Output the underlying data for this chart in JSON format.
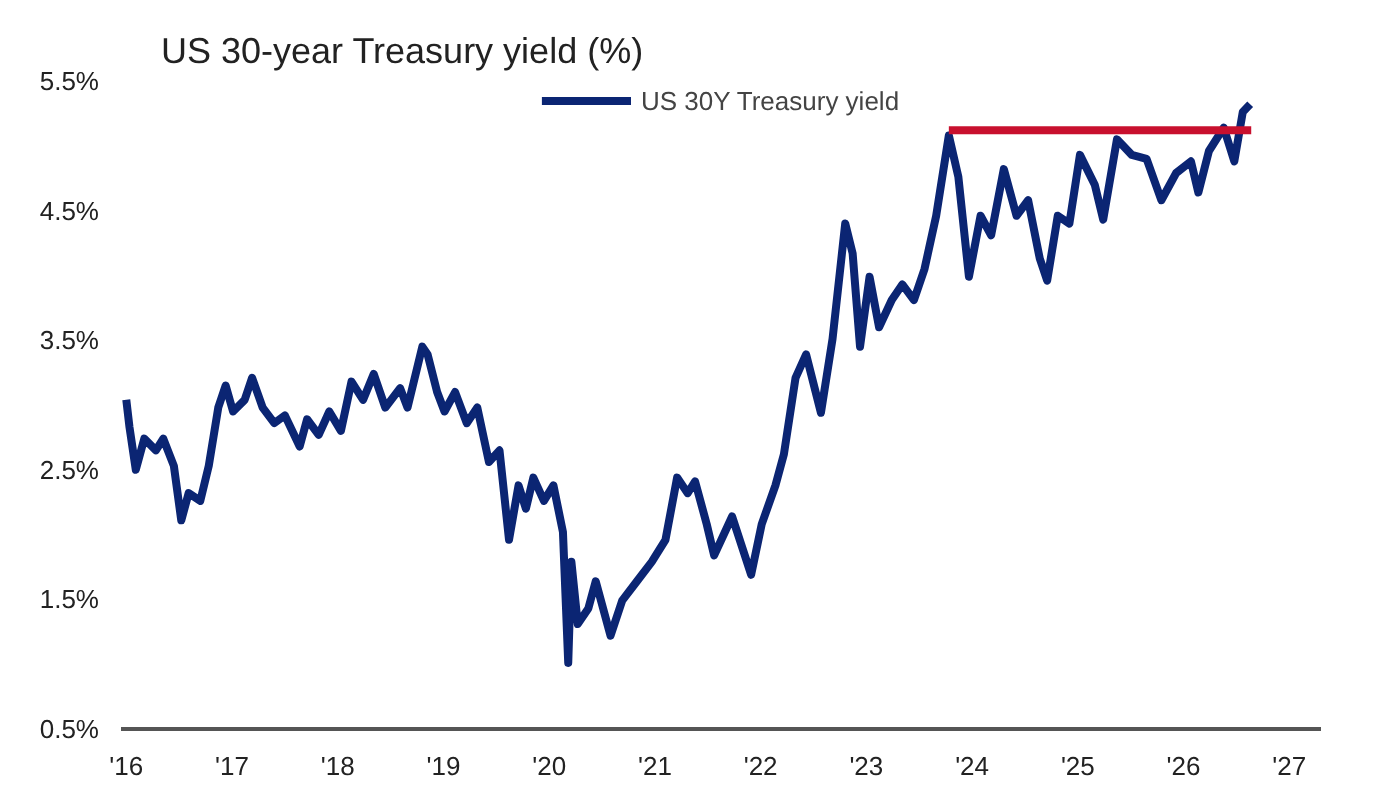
{
  "chart_data": {
    "type": "line",
    "title": "US 30-year Treasury yield (%)",
    "series": [
      {
        "name": "US 30Y Treasury yield",
        "color": "#0b2573",
        "x": [
          2016.0,
          2016.03,
          2016.09,
          2016.17,
          2016.28,
          2016.35,
          2016.45,
          2016.52,
          2016.59,
          2016.7,
          2016.78,
          2016.87,
          2016.94,
          2017.01,
          2017.12,
          2017.19,
          2017.29,
          2017.4,
          2017.5,
          2017.64,
          2017.71,
          2017.82,
          2017.92,
          2018.03,
          2018.13,
          2018.24,
          2018.34,
          2018.45,
          2018.59,
          2018.66,
          2018.8,
          2018.85,
          2018.94,
          2019.01,
          2019.11,
          2019.22,
          2019.32,
          2019.43,
          2019.53,
          2019.62,
          2019.71,
          2019.78,
          2019.85,
          2019.95,
          2020.04,
          2020.13,
          2020.18,
          2020.21,
          2020.27,
          2020.37,
          2020.44,
          2020.58,
          2020.69,
          2020.83,
          2020.97,
          2021.1,
          2021.21,
          2021.31,
          2021.38,
          2021.49,
          2021.56,
          2021.73,
          2021.91,
          2022.01,
          2022.14,
          2022.22,
          2022.33,
          2022.43,
          2022.57,
          2022.68,
          2022.8,
          2022.87,
          2022.94,
          2023.03,
          2023.12,
          2023.24,
          2023.34,
          2023.45,
          2023.55,
          2023.66,
          2023.78,
          2023.87,
          2023.97,
          2024.08,
          2024.18,
          2024.3,
          2024.42,
          2024.53,
          2024.64,
          2024.71,
          2024.81,
          2024.92,
          2025.02,
          2025.16,
          2025.24,
          2025.37,
          2025.51,
          2025.65,
          2025.79,
          2025.93,
          2026.07,
          2026.14,
          2026.24,
          2026.38,
          2026.48,
          2026.56,
          2026.63
        ],
        "values": [
          3.04,
          2.83,
          2.5,
          2.74,
          2.65,
          2.74,
          2.53,
          2.11,
          2.32,
          2.26,
          2.53,
          2.98,
          3.15,
          2.95,
          3.04,
          3.21,
          2.98,
          2.86,
          2.92,
          2.68,
          2.89,
          2.77,
          2.95,
          2.8,
          3.18,
          3.04,
          3.24,
          2.98,
          3.13,
          2.98,
          3.45,
          3.39,
          3.1,
          2.95,
          3.1,
          2.86,
          2.98,
          2.56,
          2.65,
          1.96,
          2.38,
          2.2,
          2.44,
          2.26,
          2.38,
          2.02,
          1.01,
          1.79,
          1.31,
          1.43,
          1.64,
          1.22,
          1.49,
          1.64,
          1.79,
          1.96,
          2.44,
          2.32,
          2.41,
          2.08,
          1.84,
          2.14,
          1.69,
          2.08,
          2.38,
          2.62,
          3.21,
          3.39,
          2.94,
          3.51,
          4.4,
          4.17,
          3.45,
          3.99,
          3.6,
          3.81,
          3.93,
          3.81,
          4.05,
          4.46,
          5.08,
          4.76,
          3.99,
          4.46,
          4.31,
          4.82,
          4.46,
          4.58,
          4.13,
          3.96,
          4.46,
          4.4,
          4.93,
          4.7,
          4.43,
          5.05,
          4.93,
          4.9,
          4.58,
          4.79,
          4.88,
          4.64,
          4.96,
          5.14,
          4.88,
          5.26,
          5.32
        ]
      },
      {
        "color": "#c8102e",
        "x": [
          2023.78,
          2026.64
        ],
        "values": [
          5.12,
          5.12
        ]
      }
    ],
    "xlim": [
      2015.95,
      2027.3
    ],
    "xticks": [
      {
        "value": 2016,
        "label": "'16"
      },
      {
        "value": 2017,
        "label": "'17"
      },
      {
        "value": 2018,
        "label": "'18"
      },
      {
        "value": 2019,
        "label": "'19"
      },
      {
        "value": 2020,
        "label": "'20"
      },
      {
        "value": 2021,
        "label": "'21"
      },
      {
        "value": 2022,
        "label": "'22"
      },
      {
        "value": 2023,
        "label": "'23"
      },
      {
        "value": 2024,
        "label": "'24"
      },
      {
        "value": 2025,
        "label": "'25"
      },
      {
        "value": 2026,
        "label": "'26"
      },
      {
        "value": 2027,
        "label": "'27"
      }
    ],
    "ylim": [
      0.5,
      5.5
    ],
    "yticks": [
      {
        "value": 0.5,
        "label": "0.5%"
      },
      {
        "value": 1.5,
        "label": "1.5%"
      },
      {
        "value": 2.5,
        "label": "2.5%"
      },
      {
        "value": 3.5,
        "label": "3.5%"
      },
      {
        "value": 4.5,
        "label": "4.5%"
      },
      {
        "value": 5.5,
        "label": "5.5%"
      }
    ],
    "grid": false,
    "legend": "top",
    "line_style": "solid"
  }
}
